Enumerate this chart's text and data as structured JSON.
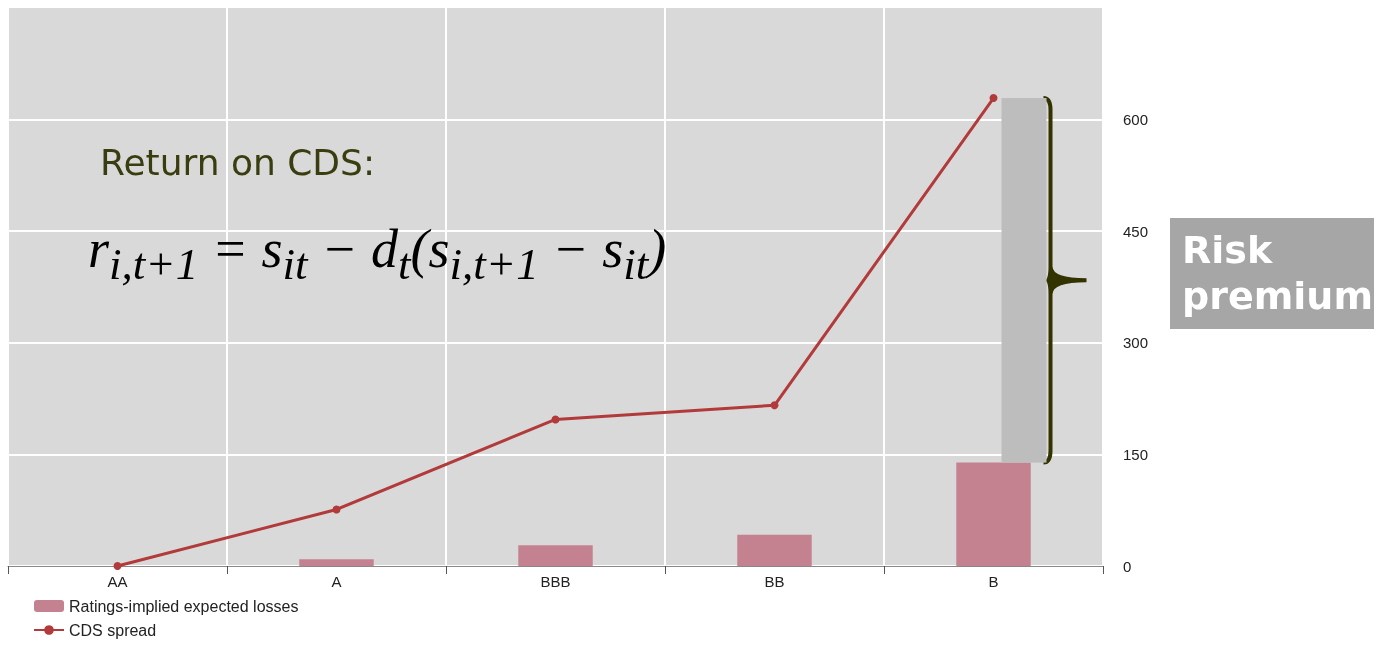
{
  "chart_data": {
    "type": "bar",
    "categories": [
      "AA",
      "A",
      "BBB",
      "BB",
      "B"
    ],
    "series": [
      {
        "name": "Ratings-implied expected losses",
        "color": "#c48190",
        "values": [
          0,
          9,
          28,
          42,
          139
        ]
      },
      {
        "name": "CDS spread",
        "type": "line",
        "color": "#b23a3a",
        "values": [
          0,
          76,
          197,
          216,
          629
        ]
      }
    ],
    "ylim": [
      0,
      750
    ],
    "yticks": [
      0,
      150,
      300,
      450,
      600
    ],
    "grid": true,
    "legend": "bottom left",
    "marker": "circle",
    "line_style": "solid",
    "annotations": [
      "Return on CDS:",
      "r$_{i,t+1}$ = s$_{it}$ − d$_{t}$(s$_{i,t+1}$ − s$_{it}$)",
      "Risk premium"
    ]
  }
}
